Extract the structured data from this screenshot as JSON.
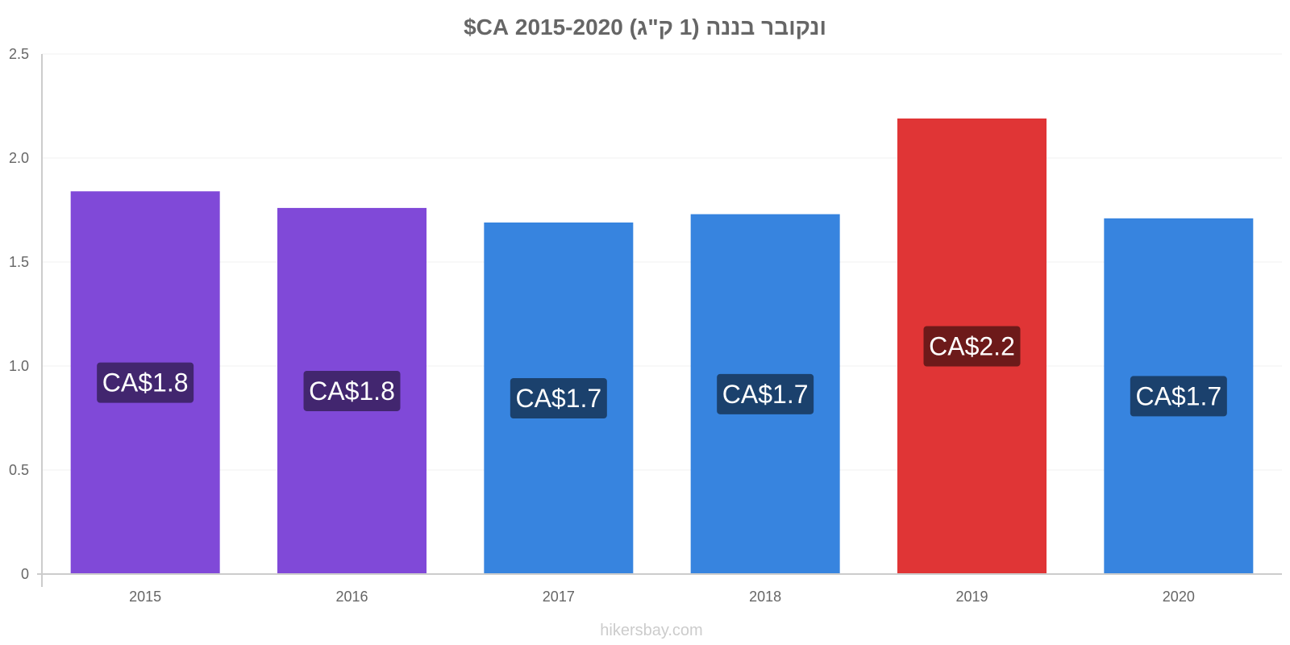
{
  "watermark": "hikersbay.com",
  "chart_data": {
    "type": "bar",
    "title": "ונקובר בננה (1 ק\"ג) 2015-2020 CA$",
    "categories": [
      "2015",
      "2016",
      "2017",
      "2018",
      "2019",
      "2020"
    ],
    "values": [
      1.84,
      1.76,
      1.69,
      1.73,
      2.19,
      1.71
    ],
    "value_labels": [
      "CA$1.8",
      "CA$1.8",
      "CA$1.7",
      "CA$1.7",
      "CA$2.2",
      "CA$1.7"
    ],
    "bar_colors": [
      "#8049d8",
      "#8049d8",
      "#3784df",
      "#3784df",
      "#e03536",
      "#3784df"
    ],
    "label_box_colors": [
      "#42266f",
      "#42266f",
      "#1b416d",
      "#1b416d",
      "#6d1a1a",
      "#1b416d"
    ],
    "y_ticks": [
      "0",
      "0.5",
      "1.0",
      "1.5",
      "2.0",
      "2.5"
    ],
    "ylim": [
      0,
      2.5
    ],
    "grid": true,
    "legend": "none"
  }
}
